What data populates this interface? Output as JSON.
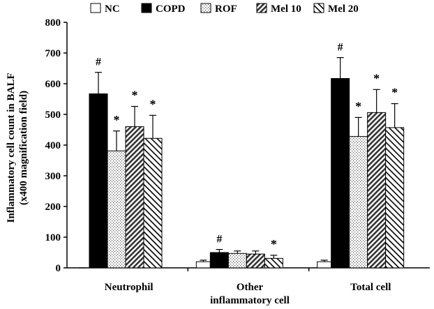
{
  "chart_data": {
    "type": "bar",
    "title": "",
    "xlabel": "",
    "ylabel_lines": [
      "Inflammatory cell count in BALF",
      "(x400 magnification field)"
    ],
    "ylim": [
      0,
      800
    ],
    "yticks": [
      0,
      100,
      200,
      300,
      400,
      500,
      600,
      700,
      800
    ],
    "legend_position": "top",
    "grid": false,
    "categories": [
      [
        "Neutrophil"
      ],
      [
        "Other",
        "inflammatory cell"
      ],
      [
        "Total cell"
      ]
    ],
    "series": [
      {
        "name": "NC",
        "pattern": "white",
        "values": [
          0,
          20,
          20
        ],
        "errors": [
          0,
          5,
          5
        ],
        "annotations": [
          "",
          "",
          ""
        ]
      },
      {
        "name": "COPD",
        "pattern": "black",
        "values": [
          567,
          50,
          617
        ],
        "errors": [
          70,
          10,
          68
        ],
        "annotations": [
          "#",
          "#",
          "#"
        ]
      },
      {
        "name": "ROF",
        "pattern": "dotted",
        "values": [
          381,
          47,
          428
        ],
        "errors": [
          65,
          8,
          62
        ],
        "annotations": [
          "*",
          "",
          "*"
        ]
      },
      {
        "name": "Mel 10",
        "pattern": "dense-diagonal",
        "values": [
          460,
          45,
          506
        ],
        "errors": [
          66,
          10,
          75
        ],
        "annotations": [
          "*",
          "",
          "*"
        ]
      },
      {
        "name": "Mel 20",
        "pattern": "wide-diagonal",
        "values": [
          422,
          31,
          457
        ],
        "errors": [
          75,
          10,
          78
        ],
        "annotations": [
          "*",
          "*",
          "*"
        ]
      }
    ]
  }
}
